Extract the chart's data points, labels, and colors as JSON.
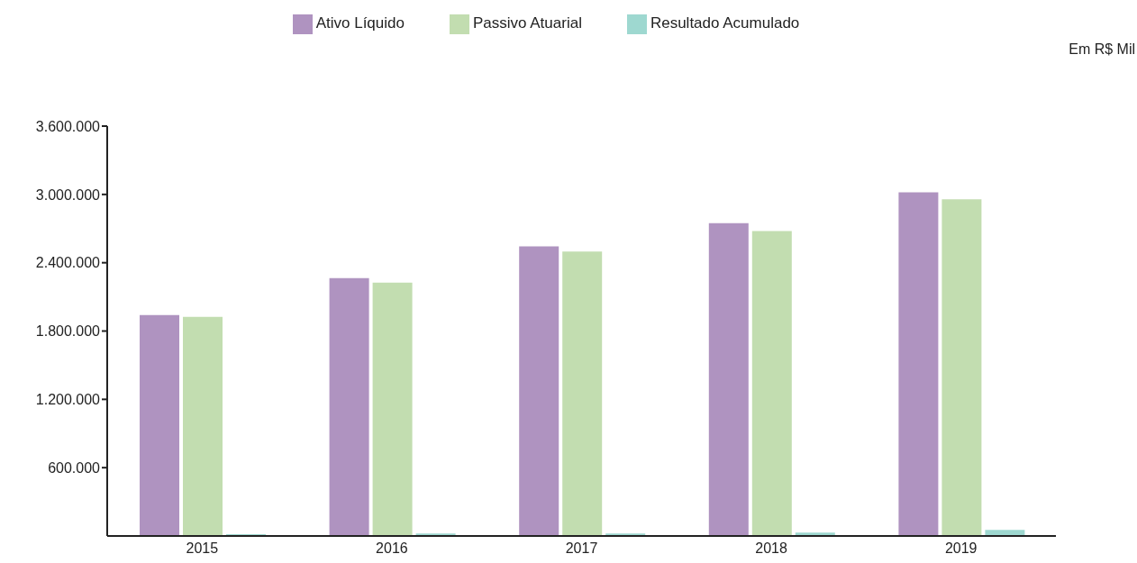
{
  "chart_data": {
    "type": "bar",
    "categories": [
      "2015",
      "2016",
      "2017",
      "2018",
      "2019"
    ],
    "series": [
      {
        "name": "Ativo Líquido",
        "color": "#af93c0",
        "values": [
          1940000,
          2264000,
          2543000,
          2747000,
          3019000
        ]
      },
      {
        "name": "Passivo Atuarial",
        "color": "#c2ddb0",
        "values": [
          1925000,
          2226000,
          2498000,
          2679000,
          2958000
        ]
      },
      {
        "name": "Resultado Acumulado",
        "color": "#9ed8d0",
        "values": [
          15000,
          22000,
          22000,
          30000,
          53000
        ]
      }
    ],
    "ylim": [
      0,
      3600000
    ],
    "yticks": [
      {
        "value": 600000,
        "label": "600.000"
      },
      {
        "value": 1200000,
        "label": "1.200.000"
      },
      {
        "value": 1800000,
        "label": "1.800.000"
      },
      {
        "value": 2400000,
        "label": "2.400.000"
      },
      {
        "value": 3000000,
        "label": "3.000.000"
      },
      {
        "value": 3600000,
        "label": "3.600.000"
      }
    ],
    "grid": false,
    "legend": "top",
    "annotations": [
      "Em R$ Mil"
    ]
  }
}
